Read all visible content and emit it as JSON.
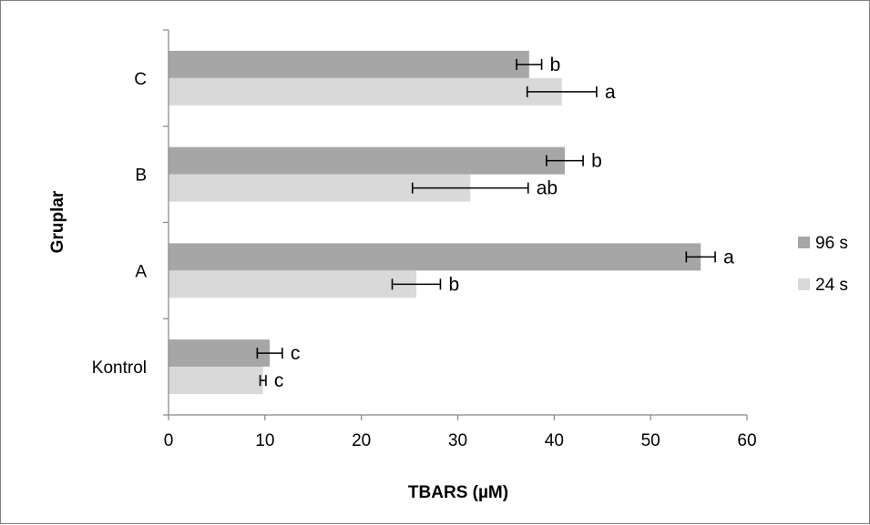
{
  "chart_data": {
    "type": "bar",
    "orientation": "horizontal",
    "xlabel": "TBARS (µM)",
    "ylabel": "Gruplar",
    "xlim": [
      0,
      60
    ],
    "xticks": [
      0,
      10,
      20,
      30,
      40,
      50,
      60
    ],
    "grid": false,
    "legend_position": "right",
    "categories": [
      "Kontrol",
      "A",
      "B",
      "C"
    ],
    "series": [
      {
        "name": "96 s",
        "color": "#a6a6a6",
        "values": [
          10.5,
          55.2,
          41.1,
          37.4
        ],
        "errors": [
          1.3,
          1.5,
          1.9,
          1.3
        ],
        "labels": [
          "c",
          "a",
          "b",
          "b"
        ]
      },
      {
        "name": "24 s",
        "color": "#d9d9d9",
        "values": [
          9.8,
          25.7,
          31.3,
          40.8
        ],
        "errors": [
          0.3,
          2.5,
          6.0,
          3.6
        ],
        "labels": [
          "c",
          "b",
          "ab",
          "a"
        ]
      }
    ]
  }
}
